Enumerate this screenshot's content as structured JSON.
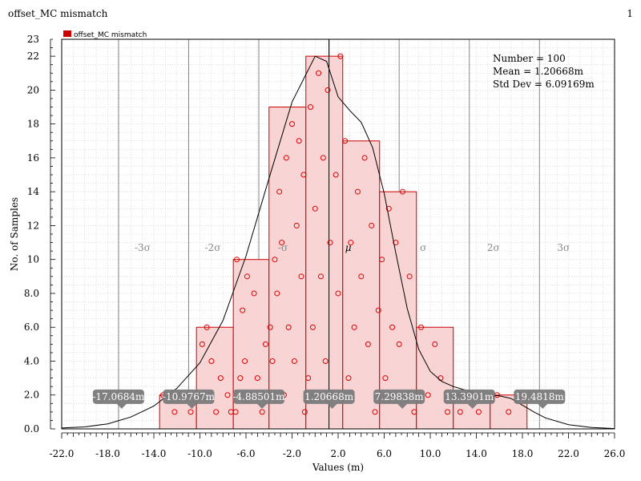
{
  "window": {
    "title": "offset_MC mismatch",
    "page": "1"
  },
  "colors": {
    "bar_fill": "#f8d4d4",
    "bar_edge": "#cc0000",
    "point": "#e00000",
    "curve": "#000000",
    "sigma_line": "#888888",
    "grid": "#c8c8c8",
    "callout": "#7a7a7a"
  },
  "chart_data": {
    "type": "bar",
    "subtype": "histogram",
    "series_name": "offset_MC mismatch",
    "xlabel": "Values (m)",
    "ylabel": "No. of Samples",
    "xlim": [
      -22.0,
      26.0
    ],
    "ylim": [
      0,
      23
    ],
    "x_ticks": [
      "-22.0",
      "-18.0",
      "-14.0",
      "-10.0",
      "-6.0",
      "-2.0",
      "2.0",
      "6.0",
      "10.0",
      "14.0",
      "18.0",
      "22.0",
      "26.0"
    ],
    "y_ticks": [
      "0.0",
      "2.0",
      "4.0",
      "6.0",
      "8.0",
      "10",
      "12",
      "14",
      "16",
      "18",
      "20",
      "22",
      "23"
    ],
    "grid": true,
    "legend_position": "top-left",
    "bins": [
      {
        "x0": -13.5,
        "x1": -10.3,
        "count": 2
      },
      {
        "x0": -10.3,
        "x1": -7.1,
        "count": 6
      },
      {
        "x0": -7.1,
        "x1": -4.0,
        "count": 10
      },
      {
        "x0": -4.0,
        "x1": -0.8,
        "count": 19
      },
      {
        "x0": -0.8,
        "x1": 2.4,
        "count": 22
      },
      {
        "x0": 2.4,
        "x1": 5.6,
        "count": 17
      },
      {
        "x0": 5.6,
        "x1": 8.8,
        "count": 14
      },
      {
        "x0": 8.8,
        "x1": 12.0,
        "count": 6
      },
      {
        "x0": 12.0,
        "x1": 15.2,
        "count": 2
      },
      {
        "x0": 15.2,
        "x1": 18.4,
        "count": 2
      }
    ],
    "stats": [
      "Number = 100",
      "Mean = 1.20668m",
      "Std Dev = 6.09169m"
    ],
    "sigma_lines": [
      {
        "value": -17.0684,
        "label": "-3σ",
        "callout": "-17.0684m"
      },
      {
        "value": -10.9767,
        "label": "-2σ",
        "callout": "-10.9767m"
      },
      {
        "value": -4.88501,
        "label": "-σ",
        "callout": "-4.88501m"
      },
      {
        "value": 1.20668,
        "label": "μ",
        "callout": "1.20668m"
      },
      {
        "value": 7.29838,
        "label": "σ",
        "callout": "7.29838m"
      },
      {
        "value": 13.3901,
        "label": "2σ",
        "callout": "13.3901m"
      },
      {
        "value": 19.4818,
        "label": "3σ",
        "callout": "19.4818m"
      }
    ],
    "curve": [
      [
        -22,
        0.05
      ],
      [
        -20,
        0.12
      ],
      [
        -18,
        0.3
      ],
      [
        -16,
        0.7
      ],
      [
        -14,
        1.35
      ],
      [
        -12,
        2.4
      ],
      [
        -10,
        3.9
      ],
      [
        -8,
        6.4
      ],
      [
        -6,
        10.2
      ],
      [
        -4,
        14.8
      ],
      [
        -2,
        19.3
      ],
      [
        0,
        22.0
      ],
      [
        1,
        21.7
      ],
      [
        2,
        19.6
      ],
      [
        3,
        18.8
      ],
      [
        4,
        18.1
      ],
      [
        5,
        16.6
      ],
      [
        6,
        13.9
      ],
      [
        7,
        10.4
      ],
      [
        8,
        7.1
      ],
      [
        9,
        4.7
      ],
      [
        10,
        3.4
      ],
      [
        11,
        2.8
      ],
      [
        12,
        2.5
      ],
      [
        13,
        2.3
      ],
      [
        14,
        2.1
      ],
      [
        15,
        2.0
      ],
      [
        16,
        1.95
      ],
      [
        17,
        1.8
      ],
      [
        18,
        1.4
      ],
      [
        19,
        1.0
      ],
      [
        20,
        0.65
      ],
      [
        22,
        0.25
      ],
      [
        24,
        0.08
      ],
      [
        26,
        0.02
      ]
    ],
    "points": [
      [
        -13.2,
        2
      ],
      [
        -12.2,
        1
      ],
      [
        -11.2,
        2
      ],
      [
        -10.8,
        1
      ],
      [
        -10.1,
        2
      ],
      [
        -9.8,
        5
      ],
      [
        -9.4,
        6
      ],
      [
        -9.0,
        4
      ],
      [
        -8.6,
        1
      ],
      [
        -8.2,
        3
      ],
      [
        -7.6,
        2
      ],
      [
        -7.3,
        1
      ],
      [
        -6.9,
        1
      ],
      [
        -6.8,
        10
      ],
      [
        -6.5,
        3
      ],
      [
        -6.3,
        7
      ],
      [
        -6.1,
        4
      ],
      [
        -5.9,
        9
      ],
      [
        -5.6,
        2
      ],
      [
        -5.3,
        8
      ],
      [
        -5.0,
        3
      ],
      [
        -4.6,
        1
      ],
      [
        -4.3,
        5
      ],
      [
        -4.1,
        2
      ],
      [
        -3.9,
        6
      ],
      [
        -3.7,
        4
      ],
      [
        -3.5,
        10
      ],
      [
        -3.3,
        8
      ],
      [
        -3.1,
        14
      ],
      [
        -2.9,
        11
      ],
      [
        -2.7,
        2
      ],
      [
        -2.5,
        16
      ],
      [
        -2.3,
        6
      ],
      [
        -2.0,
        18
      ],
      [
        -1.8,
        4
      ],
      [
        -1.6,
        12
      ],
      [
        -1.4,
        17
      ],
      [
        -1.2,
        9
      ],
      [
        -1.0,
        15
      ],
      [
        -0.9,
        1
      ],
      [
        -0.6,
        3
      ],
      [
        -0.4,
        19
      ],
      [
        -0.2,
        6
      ],
      [
        0.0,
        13
      ],
      [
        0.3,
        21
      ],
      [
        0.5,
        9
      ],
      [
        0.7,
        16
      ],
      [
        0.9,
        4
      ],
      [
        1.1,
        20
      ],
      [
        1.3,
        11
      ],
      [
        1.5,
        2
      ],
      [
        1.8,
        15
      ],
      [
        2.0,
        8
      ],
      [
        2.2,
        22
      ],
      [
        2.6,
        17
      ],
      [
        2.9,
        3
      ],
      [
        3.1,
        11
      ],
      [
        3.4,
        6
      ],
      [
        3.7,
        14
      ],
      [
        4.0,
        9
      ],
      [
        4.3,
        16
      ],
      [
        4.6,
        5
      ],
      [
        4.9,
        12
      ],
      [
        5.2,
        1
      ],
      [
        5.5,
        7
      ],
      [
        5.8,
        10
      ],
      [
        6.1,
        3
      ],
      [
        6.4,
        13
      ],
      [
        6.7,
        6
      ],
      [
        7.0,
        11
      ],
      [
        7.3,
        5
      ],
      [
        7.6,
        14
      ],
      [
        7.9,
        2
      ],
      [
        8.2,
        9
      ],
      [
        8.6,
        1
      ],
      [
        9.2,
        6
      ],
      [
        9.8,
        2
      ],
      [
        10.4,
        5
      ],
      [
        10.9,
        3
      ],
      [
        11.5,
        1
      ],
      [
        12.6,
        1
      ],
      [
        13.4,
        2
      ],
      [
        14.2,
        1
      ],
      [
        15.8,
        2
      ],
      [
        16.8,
        1
      ],
      [
        17.8,
        2
      ]
    ]
  }
}
